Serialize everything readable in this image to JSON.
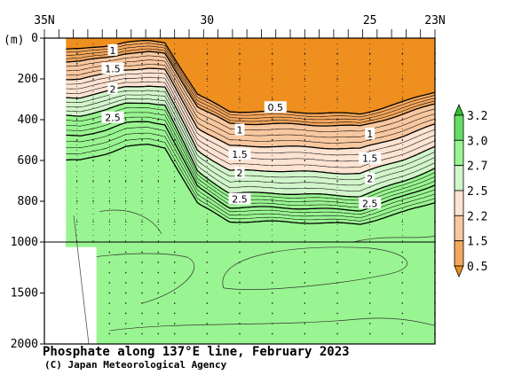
{
  "chart_data": {
    "type": "heatmap",
    "title": "Phosphate along 137°E line, February 2023",
    "credit": "(C) Japan Meteorological Agency",
    "xlabel": "",
    "ylabel": "(m)",
    "x_axis": {
      "range_lat": [
        35,
        23
      ],
      "tick_labels": [
        {
          "lat": 35,
          "text": "35N"
        },
        {
          "lat": 30,
          "text": "30"
        },
        {
          "lat": 25,
          "text": "25"
        },
        {
          "lat": 23,
          "text": "23N"
        }
      ]
    },
    "y_axis": {
      "upper_range": [
        0,
        1000
      ],
      "lower_range": [
        1000,
        2000
      ],
      "tick_labels": [
        "0",
        "200",
        "400",
        "600",
        "800",
        "1000",
        "1500",
        "2000"
      ]
    },
    "colorbar": {
      "labels": [
        "3.2",
        "3.0",
        "2.7",
        "2.5",
        "2.2",
        "1.5",
        "0.5"
      ],
      "colors": [
        "#2fc42f",
        "#66dd66",
        "#99f591",
        "#d2f5cb",
        "#fde3d2",
        "#f8c8a0",
        "#f4a75e",
        "#ef8f1f"
      ]
    },
    "contour_labels": [
      {
        "text": "1",
        "lat": 32.9,
        "depth": 60
      },
      {
        "text": "1.5",
        "lat": 32.9,
        "depth": 150
      },
      {
        "text": "2",
        "lat": 32.9,
        "depth": 250
      },
      {
        "text": "2.5",
        "lat": 32.9,
        "depth": 390
      },
      {
        "text": "0.5",
        "lat": 27.9,
        "depth": 340
      },
      {
        "text": "1",
        "lat": 29.0,
        "depth": 450
      },
      {
        "text": "1.5",
        "lat": 29.0,
        "depth": 570
      },
      {
        "text": "2",
        "lat": 29.0,
        "depth": 660
      },
      {
        "text": "2.5",
        "lat": 29.0,
        "depth": 790
      },
      {
        "text": "1",
        "lat": 25.0,
        "depth": 470
      },
      {
        "text": "1.5",
        "lat": 25.0,
        "depth": 590
      },
      {
        "text": "2",
        "lat": 25.0,
        "depth": 690
      },
      {
        "text": "2.5",
        "lat": 25.0,
        "depth": 810
      }
    ],
    "station_lats": [
      34.0,
      33.5,
      33.0,
      32.5,
      32.0,
      31.5,
      31.0,
      30.0,
      29.0,
      28.0,
      27.0,
      26.0,
      25.0,
      24.0,
      23.0
    ],
    "layer_depths_north": [
      55,
      115,
      200,
      290,
      380,
      480,
      600
    ],
    "layer_depths_south": [
      360,
      420,
      530,
      650,
      760,
      830,
      900
    ]
  }
}
